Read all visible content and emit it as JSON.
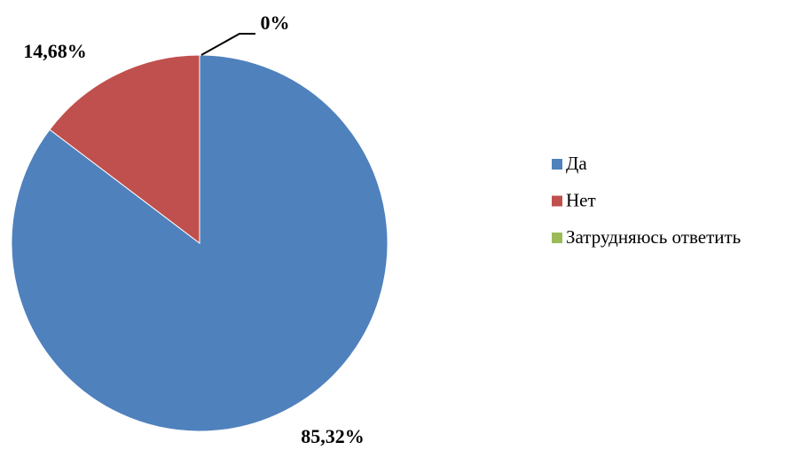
{
  "chart_data": {
    "type": "pie",
    "categories": [
      "Да",
      "Нет",
      "Затрудняюсь ответить"
    ],
    "values": [
      85.32,
      14.68,
      0
    ],
    "value_labels": [
      "85,32%",
      "14,68%",
      "0%"
    ],
    "colors": [
      "#4f81bd",
      "#c0504d",
      "#9bbb59"
    ],
    "legend": "right"
  }
}
